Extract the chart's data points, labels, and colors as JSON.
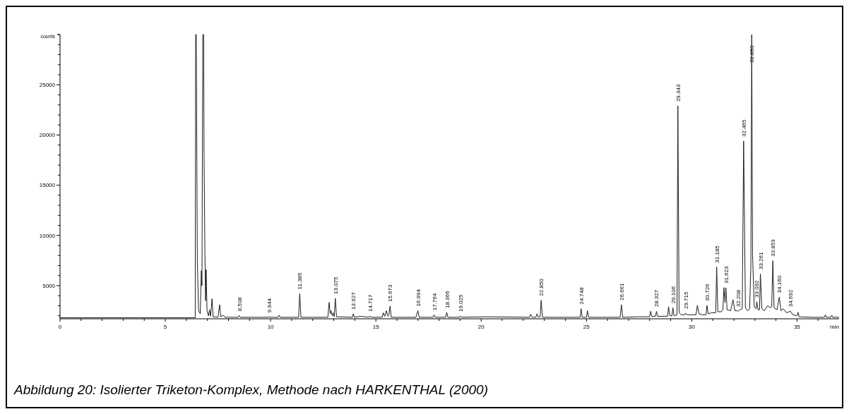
{
  "chart_data": {
    "type": "line",
    "xlabel": "min",
    "ylabel": "counts",
    "xlim": [
      0,
      37
    ],
    "ylim": [
      1700,
      30000
    ],
    "xticks": [
      0,
      {
        "value": 1,
        "label": null
      },
      {
        "value": 2,
        "label": null
      },
      {
        "value": 3,
        "label": null
      },
      {
        "value": 4,
        "label": null
      },
      5,
      {
        "value": 6,
        "label": null
      },
      {
        "value": 7,
        "label": null
      },
      {
        "value": 8,
        "label": null
      },
      {
        "value": 9,
        "label": null
      },
      10,
      {
        "value": 11,
        "label": null
      },
      {
        "value": 12,
        "label": null
      },
      {
        "value": 13,
        "label": null
      },
      {
        "value": 14,
        "label": null
      },
      15,
      {
        "value": 16,
        "label": null
      },
      {
        "value": 17,
        "label": null
      },
      {
        "value": 18,
        "label": null
      },
      {
        "value": 19,
        "label": null
      },
      20,
      {
        "value": 21,
        "label": null
      },
      {
        "value": 22,
        "label": null
      },
      {
        "value": 23,
        "label": null
      },
      {
        "value": 24,
        "label": null
      },
      25,
      {
        "value": 26,
        "label": null
      },
      {
        "value": 27,
        "label": null
      },
      {
        "value": 28,
        "label": null
      },
      {
        "value": 29,
        "label": null
      },
      30,
      {
        "value": 31,
        "label": null
      },
      {
        "value": 32,
        "label": null
      },
      {
        "value": 33,
        "label": null
      },
      {
        "value": 34,
        "label": null
      },
      35,
      {
        "value": 36,
        "label": null
      }
    ],
    "yticks": [
      {
        "value": 2000,
        "label": null
      },
      {
        "value": 3000,
        "label": null
      },
      {
        "value": 4000,
        "label": null
      },
      5000,
      {
        "value": 6000,
        "label": null
      },
      {
        "value": 7000,
        "label": null
      },
      {
        "value": 8000,
        "label": null
      },
      {
        "value": 9000,
        "label": null
      },
      10000,
      {
        "value": 11000,
        "label": null
      },
      {
        "value": 12000,
        "label": null
      },
      {
        "value": 13000,
        "label": null
      },
      {
        "value": 14000,
        "label": null
      },
      15000,
      {
        "value": 16000,
        "label": null
      },
      {
        "value": 17000,
        "label": null
      },
      {
        "value": 18000,
        "label": null
      },
      {
        "value": 19000,
        "label": null
      },
      20000,
      {
        "value": 21000,
        "label": null
      },
      {
        "value": 22000,
        "label": null
      },
      {
        "value": 23000,
        "label": null
      },
      {
        "value": 24000,
        "label": null
      },
      25000,
      {
        "value": 26000,
        "label": null
      },
      {
        "value": 27000,
        "label": null
      },
      {
        "value": 28000,
        "label": null
      },
      {
        "value": 29000,
        "label": null
      },
      {
        "value": 30000,
        "label": null
      }
    ],
    "grid": false,
    "marker": "none",
    "line_style": "solid",
    "series": [
      {
        "color": "#202020",
        "x": [
          0,
          6.42,
          6.44,
          6.47,
          6.52,
          6.58,
          6.66,
          6.71,
          6.74,
          6.78,
          6.82,
          6.84,
          6.88,
          6.91,
          6.94,
          6.98,
          7.05,
          7.1,
          7.15,
          7.22,
          7.27,
          7.5,
          7.58,
          7.63,
          7.75,
          7.85,
          8.45,
          8.508,
          8.56,
          9.9,
          9.944,
          10.0,
          10.35,
          10.4,
          10.46,
          11.33,
          11.385,
          11.44,
          12.72,
          12.78,
          12.83,
          12.87,
          12.93,
          12.97,
          13.02,
          13.075,
          13.13,
          13.88,
          13.927,
          13.98,
          14.3,
          14.67,
          14.717,
          14.77,
          15.3,
          15.35,
          15.42,
          15.5,
          15.57,
          15.62,
          15.673,
          15.73,
          16.9,
          16.994,
          17.06,
          17.71,
          17.764,
          17.82,
          18.31,
          18.366,
          18.42,
          18.97,
          19.025,
          19.08,
          20.3,
          22.3,
          22.35,
          22.42,
          22.6,
          22.65,
          22.72,
          22.8,
          22.85,
          22.91,
          24.7,
          24.748,
          24.8,
          25.0,
          25.05,
          25.1,
          26.6,
          26.661,
          26.72,
          27.5,
          28.0,
          28.05,
          28.1,
          28.28,
          28.327,
          28.38,
          28.85,
          28.9,
          28.96,
          29.06,
          29.106,
          29.16,
          29.3,
          29.343,
          29.4,
          29.5,
          29.67,
          29.715,
          29.78,
          30.2,
          30.27,
          30.34,
          30.5,
          30.68,
          30.726,
          30.78,
          30.95,
          31.14,
          31.185,
          31.24,
          31.4,
          31.48,
          31.53,
          31.58,
          31.623,
          31.68,
          31.85,
          31.96,
          32.05,
          32.16,
          32.208,
          32.28,
          32.4,
          32.465,
          32.55,
          32.65,
          32.75,
          32.81,
          32.85,
          32.89,
          32.97,
          33.05,
          33.092,
          33.15,
          33.22,
          33.261,
          33.33,
          33.45,
          33.6,
          33.74,
          33.8,
          33.853,
          33.91,
          34.05,
          34.16,
          34.24,
          34.35,
          34.5,
          34.692,
          34.8,
          35.0,
          35.05,
          35.1,
          35.7,
          36.3,
          36.35,
          36.4,
          36.6,
          36.65,
          36.7,
          37
        ],
        "values": [
          1800,
          1800,
          30000,
          30000,
          7500,
          2500,
          2200,
          6500,
          5000,
          30000,
          30000,
          17800,
          8400,
          3500,
          6600,
          2500,
          2000,
          2600,
          1950,
          3700,
          1900,
          1850,
          3100,
          1900,
          2050,
          1850,
          1850,
          2030,
          1850,
          1850,
          1900,
          1850,
          1850,
          2050,
          1850,
          1850,
          4200,
          1850,
          1850,
          3340,
          2200,
          2500,
          2000,
          2300,
          1900,
          3740,
          1900,
          1850,
          2200,
          1850,
          1950,
          1850,
          1980,
          1850,
          1850,
          2300,
          1950,
          2500,
          1950,
          2100,
          2960,
          1850,
          1850,
          2500,
          1850,
          1850,
          2100,
          1850,
          1850,
          2330,
          1850,
          1850,
          1980,
          1850,
          1900,
          1850,
          2150,
          1850,
          1850,
          2200,
          1850,
          1900,
          3550,
          1850,
          1850,
          2700,
          1850,
          1850,
          2500,
          1850,
          1850,
          3100,
          1850,
          1900,
          1900,
          2450,
          1950,
          1950,
          2450,
          1950,
          1950,
          2900,
          2000,
          2000,
          2800,
          2000,
          2100,
          22900,
          2300,
          2100,
          2100,
          2260,
          2100,
          2100,
          3050,
          2200,
          2100,
          2100,
          3040,
          2200,
          2300,
          2300,
          6850,
          2400,
          2400,
          2600,
          4800,
          3300,
          4790,
          2600,
          2500,
          3600,
          2500,
          2500,
          2450,
          2600,
          2700,
          19400,
          2800,
          2500,
          2700,
          7000,
          30000,
          8000,
          2900,
          2700,
          3390,
          2600,
          2600,
          6190,
          2700,
          2500,
          3000,
          2800,
          2900,
          7480,
          2800,
          2600,
          3850,
          2500,
          2700,
          2300,
          2450,
          2100,
          2000,
          2350,
          1900,
          1850,
          1850,
          2100,
          1850,
          1850,
          2050,
          1850,
          1850
        ]
      }
    ],
    "annotations": [
      {
        "text": "8.508",
        "x": 8.508,
        "y": 2030
      },
      {
        "text": "9.944",
        "x": 9.944,
        "y": 1900
      },
      {
        "text": "11.385",
        "x": 11.385,
        "y": 4200
      },
      {
        "text": "13.075",
        "x": 13.075,
        "y": 3740
      },
      {
        "text": "13.927",
        "x": 13.927,
        "y": 2200
      },
      {
        "text": "14.717",
        "x": 14.717,
        "y": 1980
      },
      {
        "text": "15.673",
        "x": 15.673,
        "y": 2960
      },
      {
        "text": "16.994",
        "x": 16.994,
        "y": 2500
      },
      {
        "text": "17.764",
        "x": 17.764,
        "y": 2100
      },
      {
        "text": "18.366",
        "x": 18.366,
        "y": 2330
      },
      {
        "text": "19.025",
        "x": 19.025,
        "y": 1980
      },
      {
        "text": "22.850",
        "x": 22.85,
        "y": 3550
      },
      {
        "text": "24.748",
        "x": 24.748,
        "y": 2700
      },
      {
        "text": "26.661",
        "x": 26.661,
        "y": 3100
      },
      {
        "text": "28.327",
        "x": 28.327,
        "y": 2450
      },
      {
        "text": "29.106",
        "x": 29.106,
        "y": 2800
      },
      {
        "text": "29.343",
        "x": 29.343,
        "y": 22900
      },
      {
        "text": "29.715",
        "x": 29.715,
        "y": 2260
      },
      {
        "text": "30.726",
        "x": 30.726,
        "y": 3040
      },
      {
        "text": "31.185",
        "x": 31.185,
        "y": 6850
      },
      {
        "text": "31.623",
        "x": 31.623,
        "y": 4790
      },
      {
        "text": "32.208",
        "x": 32.208,
        "y": 2450
      },
      {
        "text": "32.465",
        "x": 32.465,
        "y": 19400
      },
      {
        "text": "32.850",
        "x": 32.85,
        "y": 30000
      },
      {
        "text": "33.092",
        "x": 33.092,
        "y": 3390
      },
      {
        "text": "33.261",
        "x": 33.261,
        "y": 6190
      },
      {
        "text": "33.853",
        "x": 33.853,
        "y": 7480
      },
      {
        "text": "34.160",
        "x": 34.16,
        "y": 3850
      },
      {
        "text": "34.692",
        "x": 34.692,
        "y": 2450
      },
      "Abbildung 20: Isolierter Triketon-Komplex, Methode nach HARKENTHAL (2000)"
    ]
  }
}
